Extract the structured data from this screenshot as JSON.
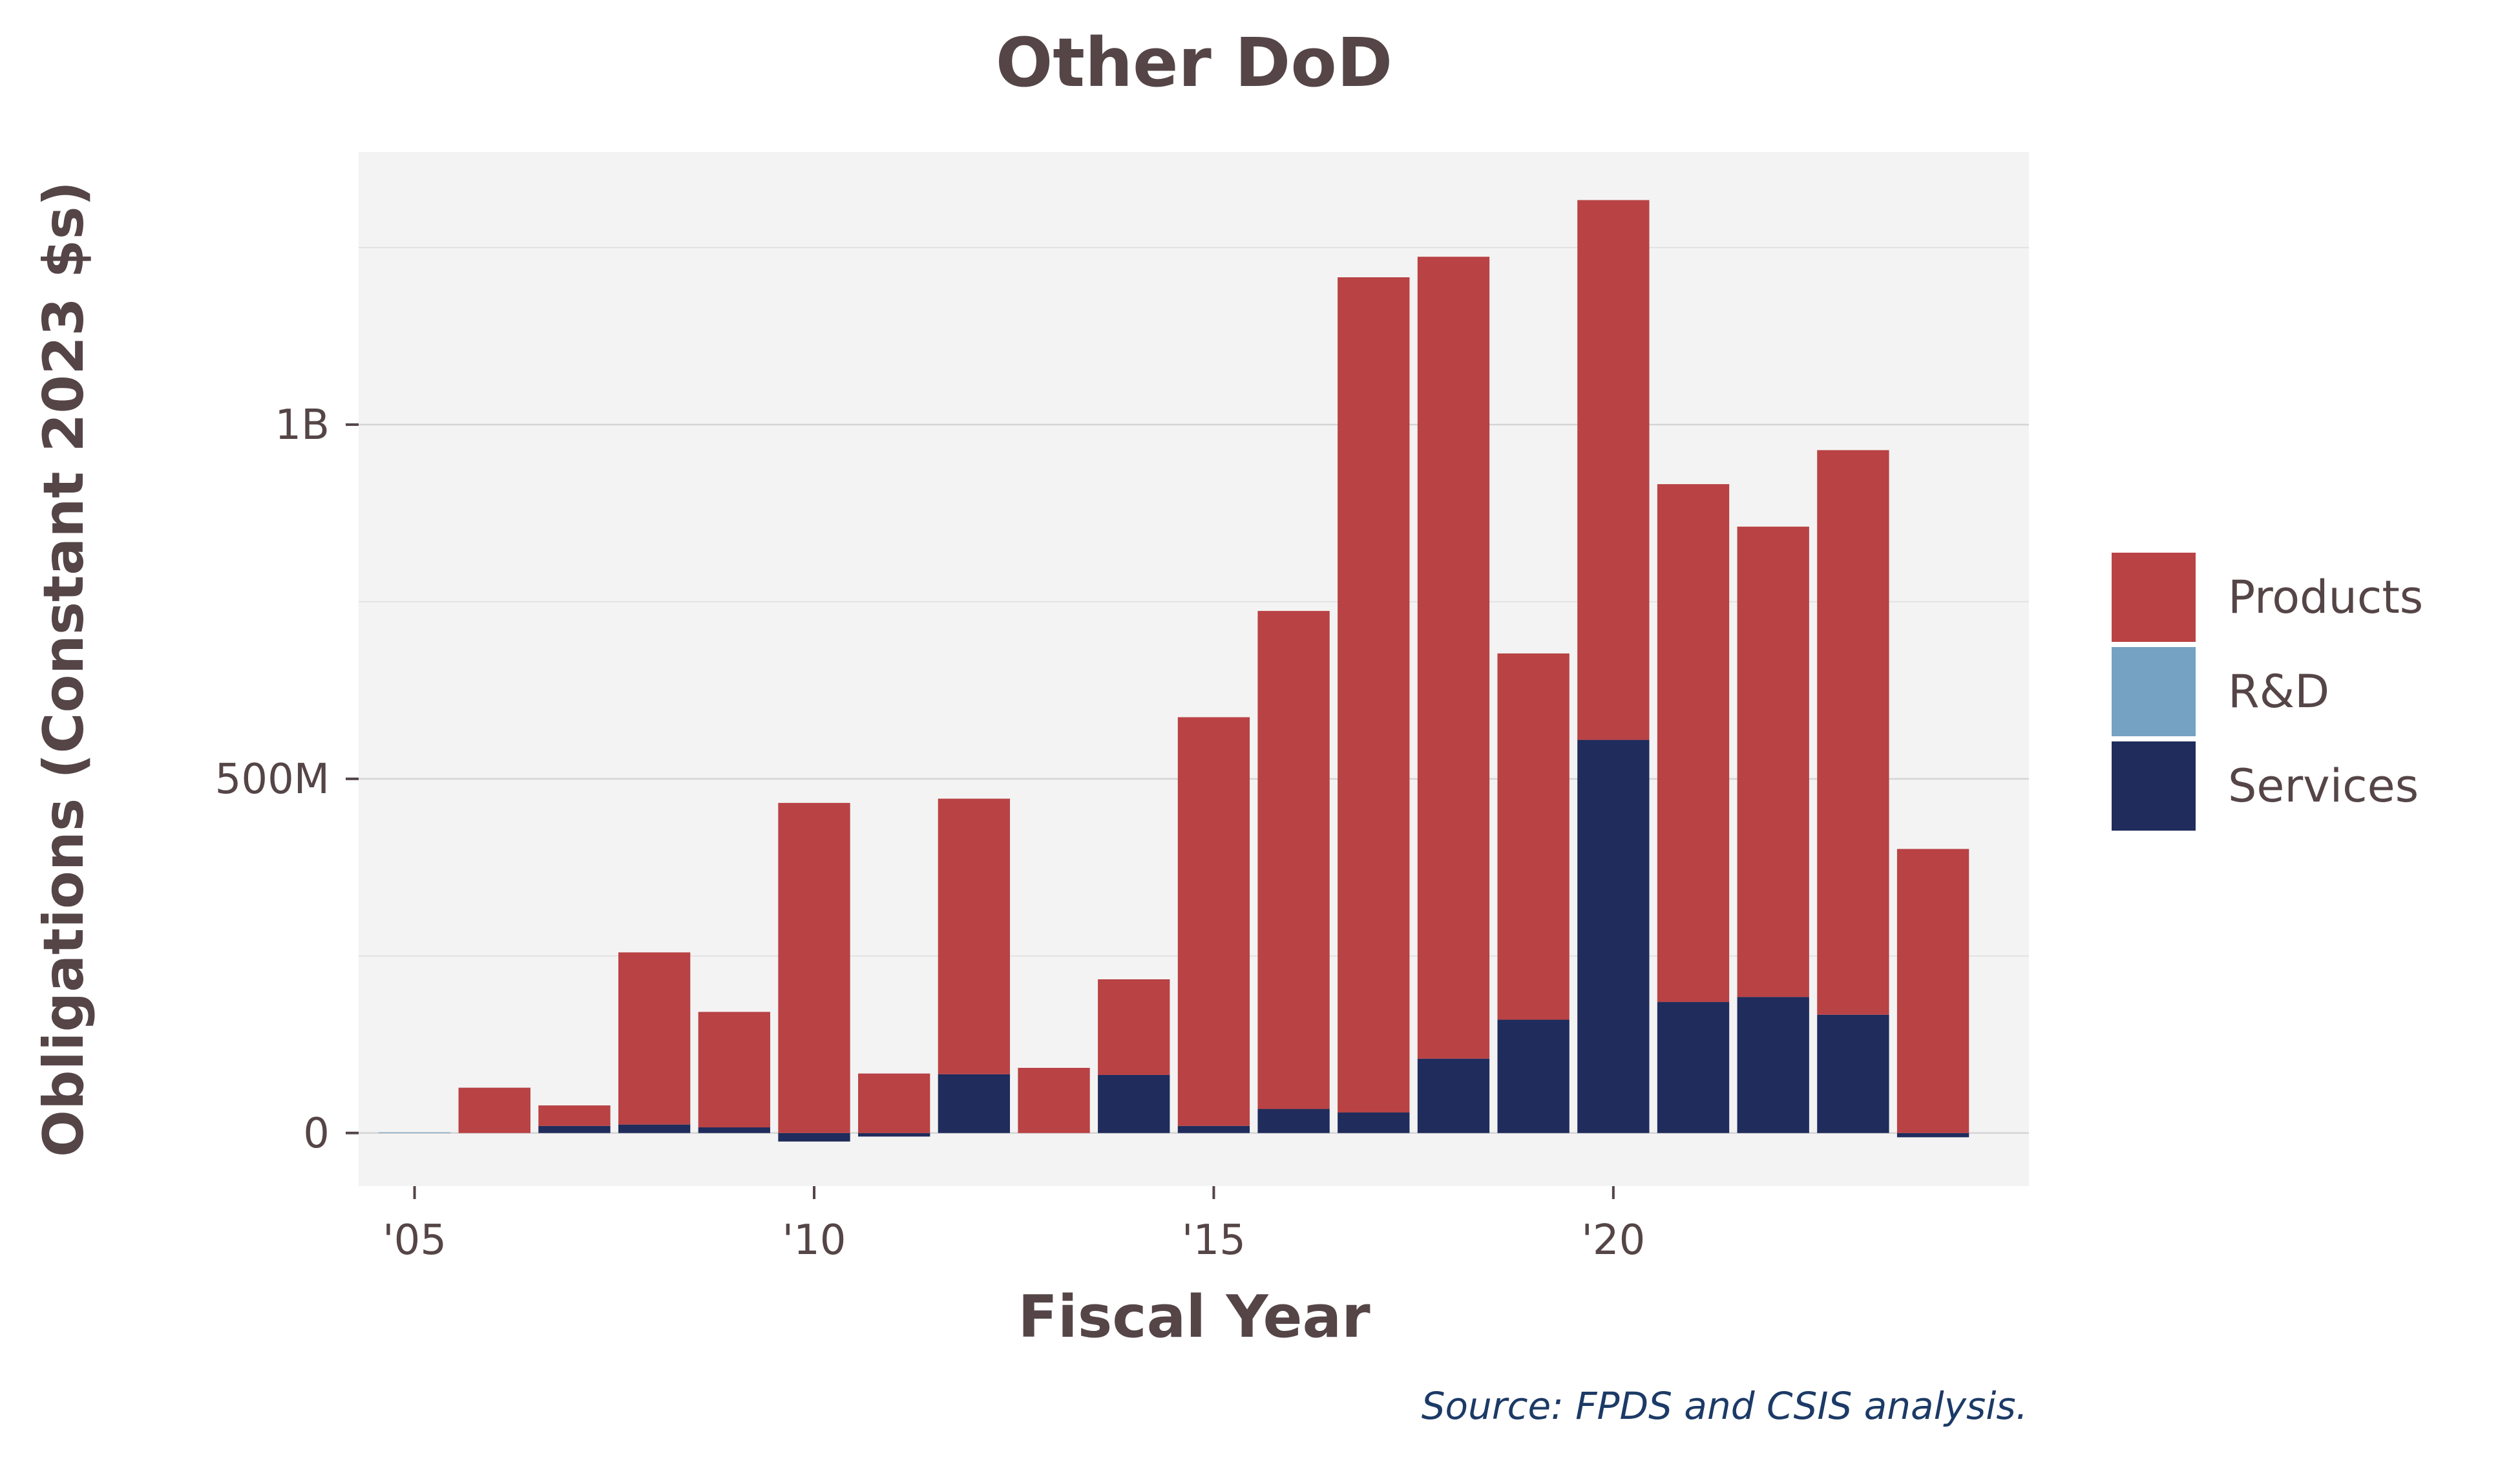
{
  "chart_data": {
    "type": "bar",
    "stacked": true,
    "title": "Other DoD",
    "xlabel": "Fiscal Year",
    "ylabel": "Obligations (Constant 2023 $s)",
    "source": "Source: FPDS and CSIS analysis.",
    "x": [
      2005,
      2006,
      2007,
      2008,
      2009,
      2010,
      2011,
      2012,
      2013,
      2014,
      2015,
      2016,
      2017,
      2018,
      2019,
      2020,
      2021,
      2022,
      2023,
      2024
    ],
    "x_ticks": [
      2005,
      2010,
      2015,
      2020
    ],
    "x_tick_labels": [
      "'05",
      "'10",
      "'15",
      "'20"
    ],
    "xlim": [
      2004.3,
      2025.2
    ],
    "y_ticks": [
      0,
      500000000,
      1000000000
    ],
    "y_tick_labels": [
      "0",
      "500M",
      "1B"
    ],
    "ylim": [
      -75000000,
      1385000000
    ],
    "grid": true,
    "legend_position": "right",
    "series": [
      {
        "name": "Services",
        "color": "#1f2c5c",
        "values": [
          0,
          0,
          10000000,
          12000000,
          8000000,
          -12000000,
          -5000000,
          83000000,
          0,
          82000000,
          10000000,
          34000000,
          29000000,
          105000000,
          160000000,
          555000000,
          185000000,
          192000000,
          167000000,
          -6000000
        ]
      },
      {
        "name": "R&D",
        "color": "#75a1c3",
        "values": [
          1000000,
          0,
          0,
          0,
          0,
          0,
          0,
          0,
          0,
          0,
          0,
          0,
          0,
          0,
          0,
          0,
          0,
          0,
          0,
          0
        ]
      },
      {
        "name": "Products",
        "color": "#b94244",
        "values": [
          0,
          64000000,
          29000000,
          243000000,
          163000000,
          466000000,
          84000000,
          389000000,
          92000000,
          135000000,
          577000000,
          703000000,
          1179000000,
          1132000000,
          517000000,
          762000000,
          731000000,
          664000000,
          797000000,
          401000000
        ]
      }
    ],
    "legend_order": [
      "Products",
      "R&D",
      "Services"
    ]
  }
}
